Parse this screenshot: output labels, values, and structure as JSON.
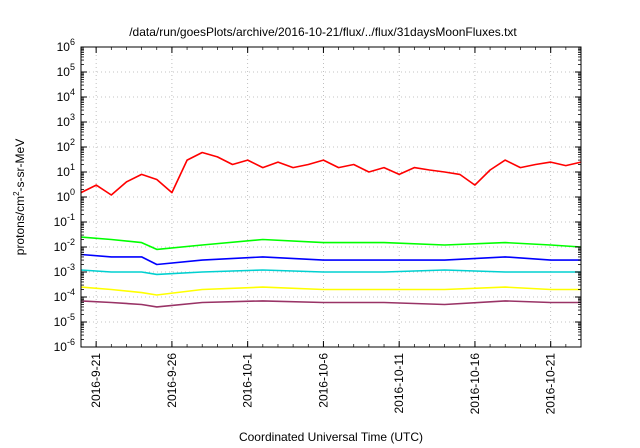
{
  "chart_data": {
    "type": "line",
    "title": "/data/run/goesPlots/archive/2016-10-21/flux/../flux/31daysMoonFluxes.txt",
    "xlabel": "Coordinated Universal Time (UTC)",
    "ylabel_parts": [
      "protons/cm",
      "2",
      "-s-sr-MeV"
    ],
    "y_scale": "log",
    "ylim": [
      1e-06,
      1000000.0
    ],
    "xlim": [
      "2016-09-20",
      "2016-10-23"
    ],
    "x_ticks": [
      "2016-9-21",
      "2016-9-26",
      "2016-10-1",
      "2016-10-6",
      "2016-10-11",
      "2016-10-16",
      "2016-10-21"
    ],
    "x_tick_dates": [
      "2016-09-21",
      "2016-09-26",
      "2016-10-01",
      "2016-10-06",
      "2016-10-11",
      "2016-10-16",
      "2016-10-21"
    ],
    "y_tick_exponents": [
      -6,
      -5,
      -4,
      -3,
      -2,
      -1,
      0,
      1,
      2,
      3,
      4,
      5,
      6
    ],
    "y_tick_base": "10",
    "grid": true,
    "series": [
      {
        "color": "#ff0000",
        "x": [
          "2016-09-20",
          "2016-09-21",
          "2016-09-22",
          "2016-09-23",
          "2016-09-24",
          "2016-09-25",
          "2016-09-26",
          "2016-09-27",
          "2016-09-28",
          "2016-09-29",
          "2016-09-30",
          "2016-10-01",
          "2016-10-02",
          "2016-10-03",
          "2016-10-04",
          "2016-10-05",
          "2016-10-06",
          "2016-10-07",
          "2016-10-08",
          "2016-10-09",
          "2016-10-10",
          "2016-10-11",
          "2016-10-12",
          "2016-10-13",
          "2016-10-14",
          "2016-10-15",
          "2016-10-16",
          "2016-10-17",
          "2016-10-18",
          "2016-10-19",
          "2016-10-20",
          "2016-10-21",
          "2016-10-22",
          "2016-10-23"
        ],
        "values": [
          1.5,
          3,
          1.2,
          4,
          8,
          5,
          1.5,
          30,
          60,
          40,
          20,
          30,
          15,
          25,
          15,
          20,
          30,
          15,
          20,
          10,
          15,
          8,
          15,
          12,
          10,
          8,
          3,
          12,
          30,
          15,
          20,
          25,
          18,
          25
        ]
      },
      {
        "color": "#00ff00",
        "x": [
          "2016-09-20",
          "2016-09-22",
          "2016-09-24",
          "2016-09-25",
          "2016-09-28",
          "2016-10-02",
          "2016-10-06",
          "2016-10-10",
          "2016-10-14",
          "2016-10-18",
          "2016-10-21",
          "2016-10-23"
        ],
        "values": [
          0.025,
          0.02,
          0.015,
          0.008,
          0.012,
          0.02,
          0.015,
          0.015,
          0.012,
          0.015,
          0.012,
          0.01
        ]
      },
      {
        "color": "#0000ff",
        "x": [
          "2016-09-20",
          "2016-09-22",
          "2016-09-24",
          "2016-09-25",
          "2016-09-28",
          "2016-10-02",
          "2016-10-06",
          "2016-10-10",
          "2016-10-14",
          "2016-10-18",
          "2016-10-21",
          "2016-10-23"
        ],
        "values": [
          0.005,
          0.004,
          0.004,
          0.002,
          0.003,
          0.004,
          0.003,
          0.003,
          0.003,
          0.004,
          0.003,
          0.003
        ]
      },
      {
        "color": "#00d0d0",
        "x": [
          "2016-09-20",
          "2016-09-22",
          "2016-09-24",
          "2016-09-25",
          "2016-09-28",
          "2016-10-02",
          "2016-10-06",
          "2016-10-10",
          "2016-10-14",
          "2016-10-18",
          "2016-10-21",
          "2016-10-23"
        ],
        "values": [
          0.0012,
          0.001,
          0.001,
          0.0008,
          0.001,
          0.0012,
          0.001,
          0.001,
          0.0012,
          0.001,
          0.001,
          0.001
        ]
      },
      {
        "color": "#ffff00",
        "x": [
          "2016-09-20",
          "2016-09-22",
          "2016-09-24",
          "2016-09-25",
          "2016-09-28",
          "2016-10-02",
          "2016-10-06",
          "2016-10-10",
          "2016-10-14",
          "2016-10-18",
          "2016-10-21",
          "2016-10-23"
        ],
        "values": [
          0.00025,
          0.0002,
          0.00015,
          0.00012,
          0.0002,
          0.00025,
          0.0002,
          0.0002,
          0.0002,
          0.00025,
          0.0002,
          0.0002
        ]
      },
      {
        "color": "#993366",
        "x": [
          "2016-09-20",
          "2016-09-22",
          "2016-09-24",
          "2016-09-25",
          "2016-09-28",
          "2016-10-02",
          "2016-10-06",
          "2016-10-10",
          "2016-10-14",
          "2016-10-18",
          "2016-10-21",
          "2016-10-23"
        ],
        "values": [
          7e-05,
          6e-05,
          5e-05,
          4e-05,
          6e-05,
          7e-05,
          6e-05,
          6e-05,
          5e-05,
          7e-05,
          6e-05,
          6e-05
        ]
      }
    ]
  }
}
